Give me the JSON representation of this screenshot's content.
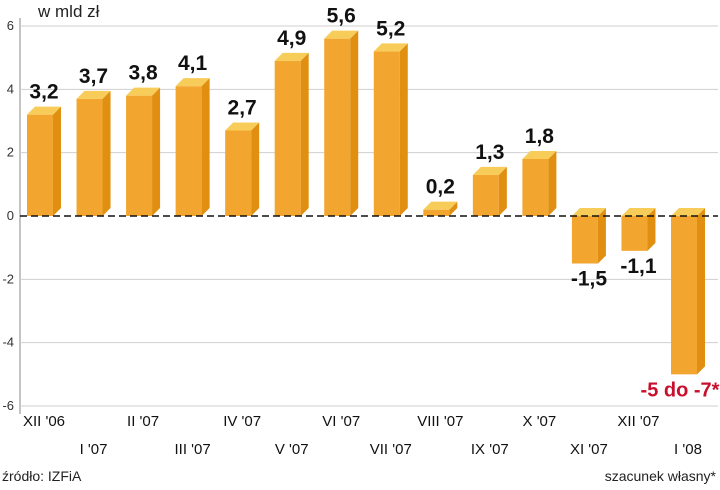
{
  "unit_label": "w mld zł",
  "source": "źródło: IZFiA",
  "footnote": "szacunek własny*",
  "colors": {
    "front": "#f2a630",
    "side": "#e08f10",
    "top": "#f8cc58",
    "grid": "#cfcfcf",
    "highlight": "#c8102e"
  },
  "chart_data": {
    "type": "bar",
    "title": "",
    "xlabel": "",
    "ylabel": "w mld zł",
    "ylim": [
      -6,
      6
    ],
    "yticks": [
      "6",
      "4",
      "2",
      "0",
      "-2",
      "-4",
      "-6"
    ],
    "grid": true,
    "categories": [
      "XII '06",
      "I '07",
      "II '07",
      "III '07",
      "IV '07",
      "V '07",
      "VI '07",
      "VII '07",
      "VIII '07",
      "IX '07",
      "X '07",
      "XI '07",
      "XII '07",
      "I '08"
    ],
    "values": [
      3.2,
      3.7,
      3.8,
      4.1,
      2.7,
      4.9,
      5.6,
      5.2,
      0.2,
      1.3,
      1.8,
      -1.5,
      -1.1,
      -5
    ],
    "data_labels": [
      "3,2",
      "3,7",
      "3,8",
      "4,1",
      "2,7",
      "4,9",
      "5,6",
      "5,2",
      "0,2",
      "1,3",
      "1,8",
      "-1,5",
      "-1,1",
      "-5 do -7*"
    ]
  }
}
